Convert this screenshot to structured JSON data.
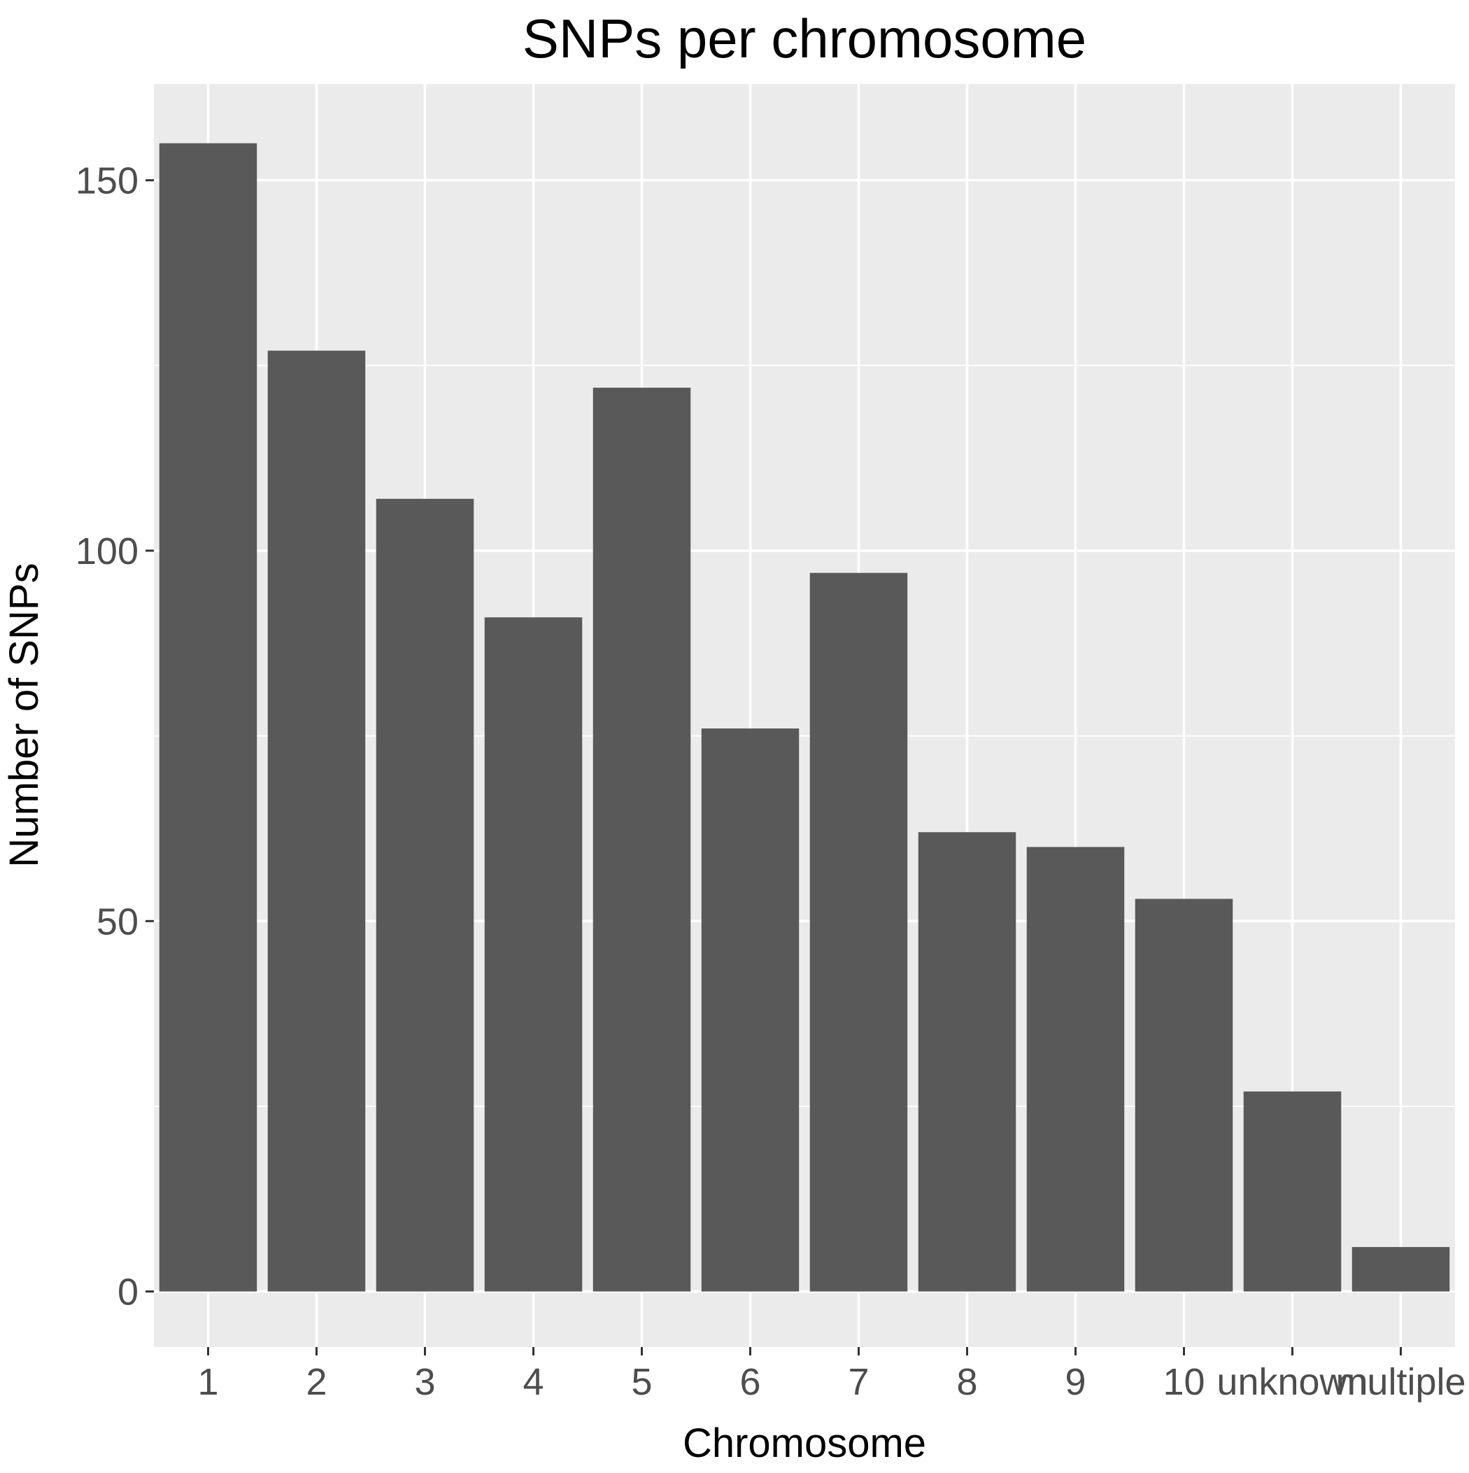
{
  "chart_data": {
    "type": "bar",
    "title": "SNPs per chromosome",
    "xlabel": "Chromosome",
    "ylabel": "Number of SNPs",
    "categories": [
      "1",
      "2",
      "3",
      "4",
      "5",
      "6",
      "7",
      "8",
      "9",
      "10",
      "unknown",
      "multiple"
    ],
    "values": [
      155,
      127,
      107,
      91,
      122,
      76,
      97,
      62,
      60,
      53,
      27,
      6
    ],
    "ylim": [
      -7.5,
      163
    ],
    "yticks": [
      0,
      50,
      100,
      150
    ],
    "grid": true,
    "legend": "none",
    "colors": {
      "bar": "#595959",
      "panel_background": "#EBEBEB",
      "grid_line": "#FFFFFF",
      "tick_mark": "#333333",
      "tick_text": "#4D4D4D",
      "title_text": "#000000"
    }
  }
}
